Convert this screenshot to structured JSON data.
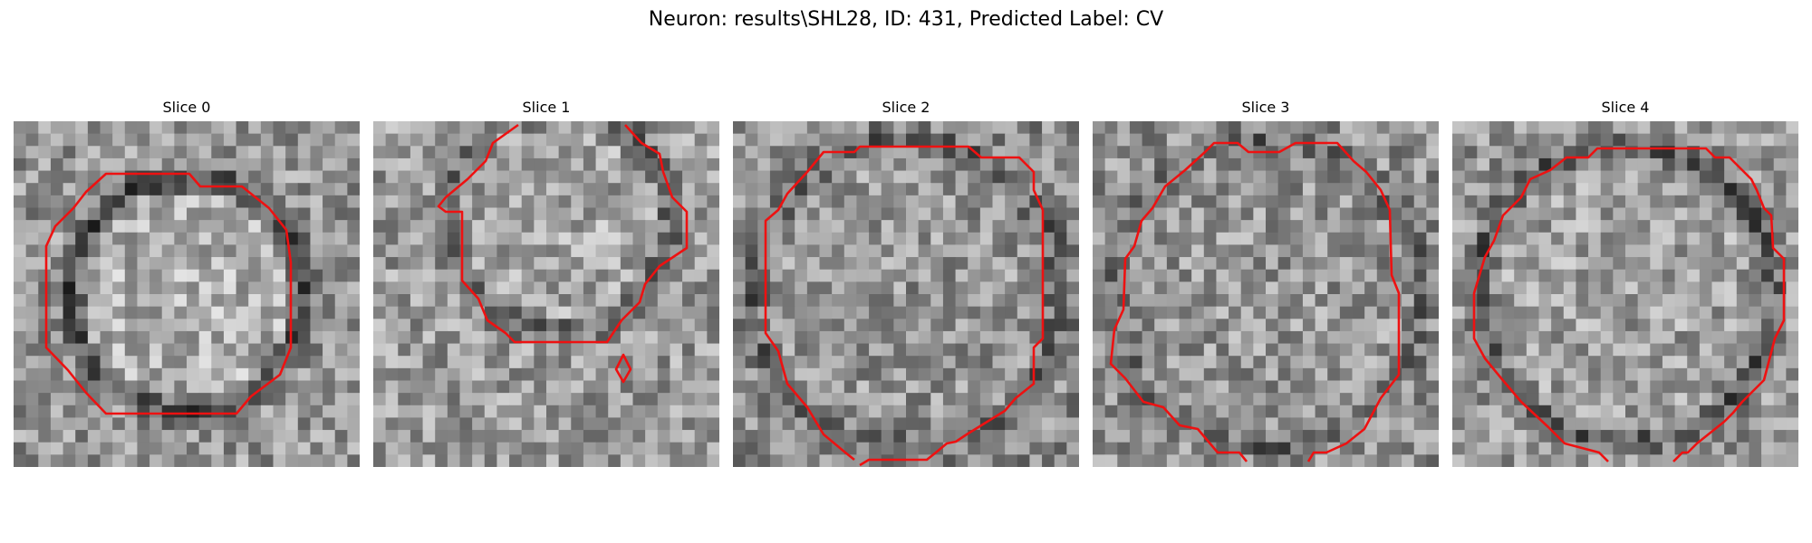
{
  "figure": {
    "title": "Neuron: results\\SHL28, ID: 431, Predicted Label: CV"
  },
  "slices": [
    {
      "title": "Slice 0"
    },
    {
      "title": "Slice 1"
    },
    {
      "title": "Slice 2"
    },
    {
      "title": "Slice 3"
    },
    {
      "title": "Slice 4"
    }
  ],
  "style": {
    "contour_color": "#ee1111",
    "image_colormap": "gray"
  }
}
